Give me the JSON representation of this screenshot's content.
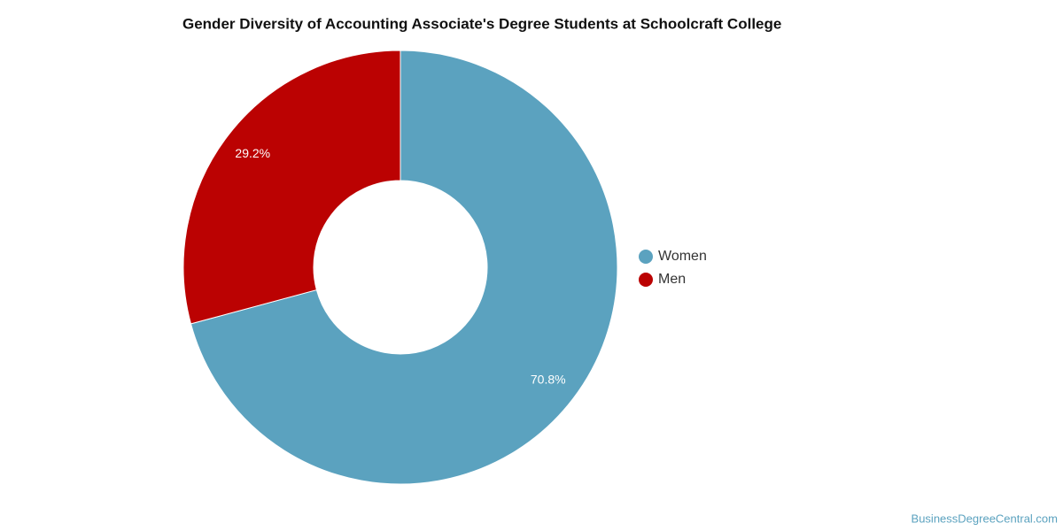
{
  "chart_data": {
    "type": "donut",
    "title": "Gender Diversity of Accounting Associate's Degree Students at Schoolcraft College",
    "categories": [
      "Women",
      "Men"
    ],
    "values": [
      70.8,
      29.2
    ],
    "value_labels": [
      "70.8%",
      "29.2%"
    ],
    "colors": [
      "#5ba2bf",
      "#bb0202"
    ],
    "legend": "right",
    "source": "BusinessDegreeCentral.com"
  }
}
